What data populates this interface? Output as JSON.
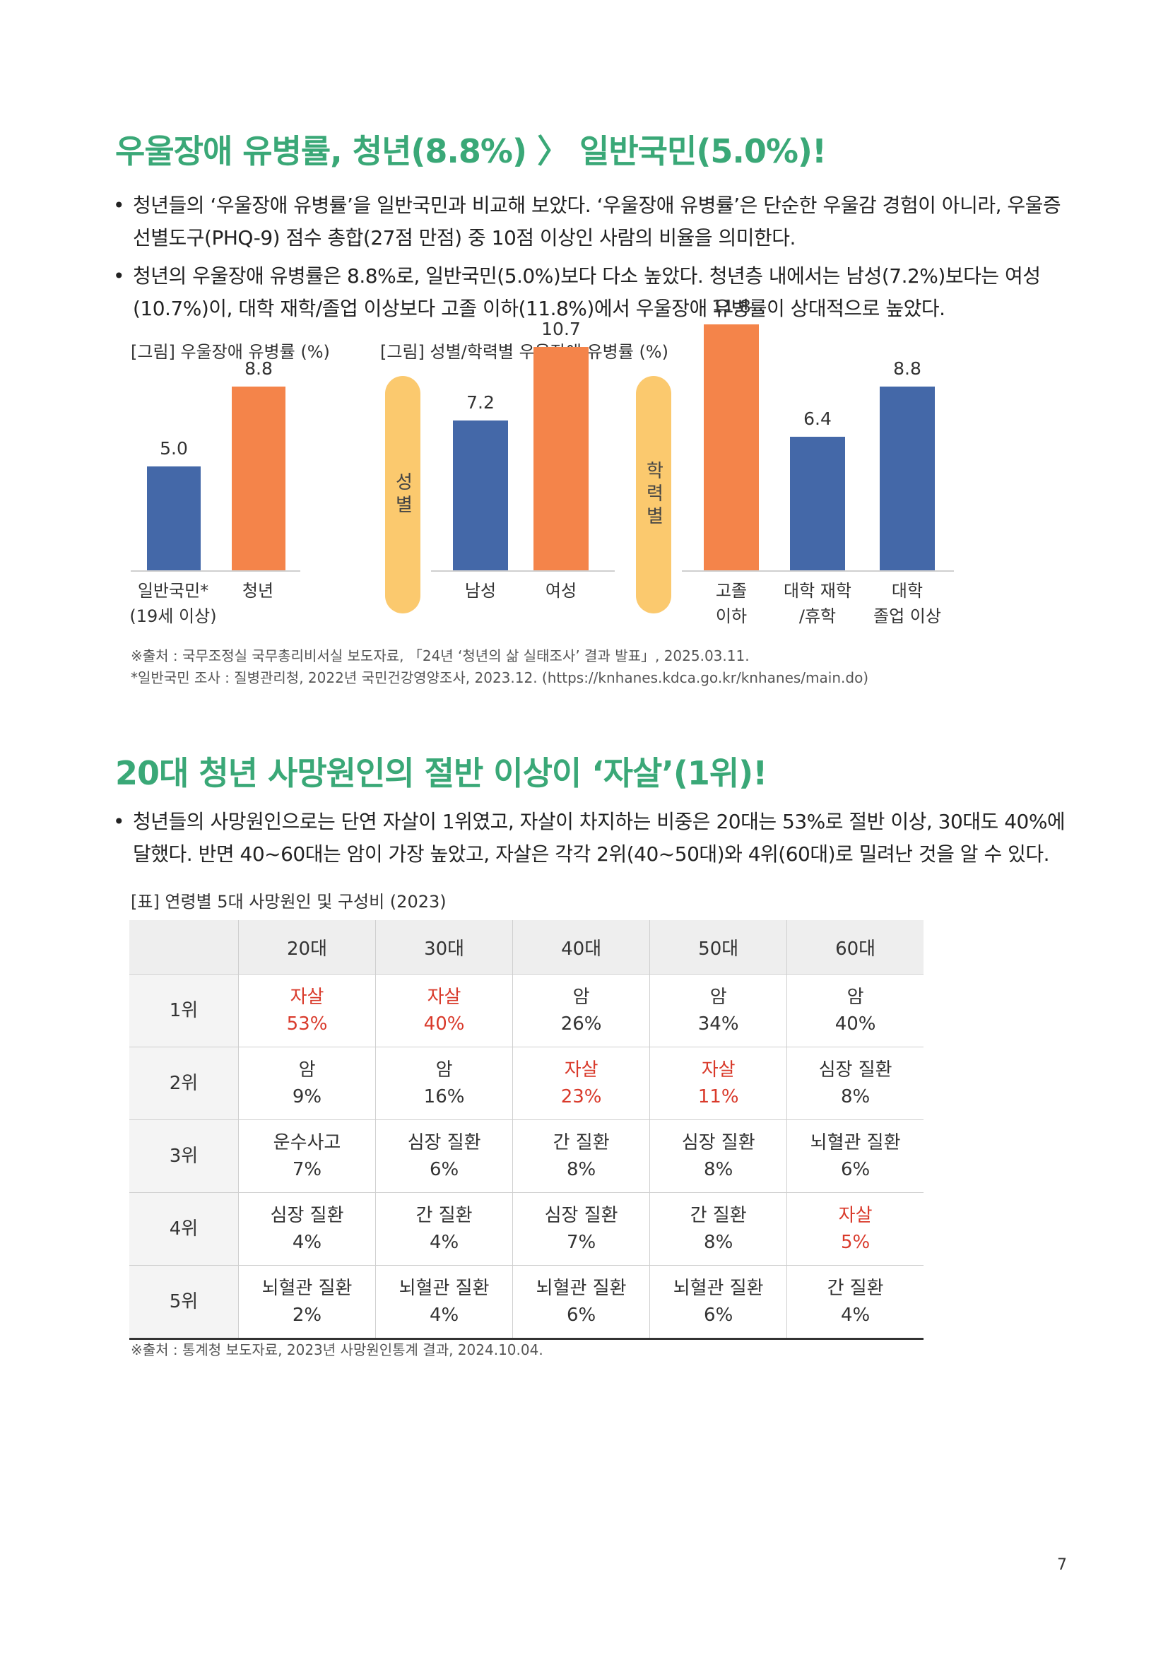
{
  "section1": {
    "heading": "우울장애 유병률, 청년(8.8%) 〉 일반국민(5.0%)!",
    "bullets": [
      "청년들의 ‘우울장애 유병률’을 일반국민과 비교해 보았다. ‘우울장애 유병률’은 단순한 우울감 경험이 아니라, 우울증 선별도구(PHQ-9) 점수 총합(27점 만점) 중 10점 이상인 사람의 비율을 의미한다.",
      "청년의 우울장애 유병률은 8.8%로, 일반국민(5.0%)보다 다소 높았다. 청년층 내에서는 남성(7.2%)보다는 여성(10.7%)이, 대학 재학/졸업 이상보다 고졸 이하(11.8%)에서 우울장애 유병률이 상대적으로 높았다."
    ],
    "fig1_caption": "[그림] 우울장애 유병률 (%)",
    "fig2_caption": "[그림] 성별/학력별 우울장애 유병률 (%)",
    "group_gender": "성별",
    "group_edu": "학력별",
    "source1": "※출처 : 국무조정실 국무총리비서실 보도자료, 「24년 ‘청년의 삶 실태조사’ 결과 발표」, 2025.03.11.",
    "source2": "*일반국민 조사 : 질병관리청, 2022년 국민건강영양조사, 2023.12. (https://knhanes.kdca.go.kr/knhanes/main.do)"
  },
  "chart_data": [
    {
      "type": "bar",
      "title": "[그림] 우울장애 유병률 (%)",
      "categories": [
        "일반국민*\n(19세 이상)",
        "청년"
      ],
      "values": [
        5.0,
        8.8
      ],
      "colors": [
        "#4468a8",
        "#f4844a"
      ],
      "ylim": [
        0,
        12
      ]
    },
    {
      "type": "bar",
      "title": "[그림] 성별/학력별 우울장애 유병률 (%)",
      "groups": [
        {
          "name": "성별",
          "categories": [
            "남성",
            "여성"
          ],
          "values": [
            7.2,
            10.7
          ],
          "colors": [
            "#4468a8",
            "#f4844a"
          ]
        },
        {
          "name": "학력별",
          "categories": [
            "고졸\n이하",
            "대학 재학\n/휴학",
            "대학\n졸업 이상"
          ],
          "values": [
            11.8,
            6.4,
            8.8
          ],
          "colors": [
            "#f4844a",
            "#4468a8",
            "#4468a8"
          ]
        }
      ],
      "ylim": [
        0,
        12
      ]
    }
  ],
  "section2": {
    "heading": "20대 청년 사망원인의 절반 이상이 ‘자살’(1위)!",
    "bullets": [
      "청년들의 사망원인으로는 단연 자살이 1위였고, 자살이 차지하는 비중은 20대는 53%로 절반 이상, 30대도 40%에 달했다. 반면 40~60대는 암이 가장 높았고, 자살은 각각 2위(40~50대)와 4위(60대)로 밀려난 것을 알 수 있다."
    ],
    "table_caption": "[표] 연령별 5대 사망원인 및 구성비 (2023)",
    "table": {
      "headers": [
        "",
        "20대",
        "30대",
        "40대",
        "50대",
        "60대"
      ],
      "rows": [
        {
          "rank": "1위",
          "cells": [
            {
              "name": "자살",
              "pct": "53%",
              "hl": true
            },
            {
              "name": "자살",
              "pct": "40%",
              "hl": true
            },
            {
              "name": "암",
              "pct": "26%",
              "hl": false
            },
            {
              "name": "암",
              "pct": "34%",
              "hl": false
            },
            {
              "name": "암",
              "pct": "40%",
              "hl": false
            }
          ]
        },
        {
          "rank": "2위",
          "cells": [
            {
              "name": "암",
              "pct": "9%",
              "hl": false
            },
            {
              "name": "암",
              "pct": "16%",
              "hl": false
            },
            {
              "name": "자살",
              "pct": "23%",
              "hl": true
            },
            {
              "name": "자살",
              "pct": "11%",
              "hl": true
            },
            {
              "name": "심장 질환",
              "pct": "8%",
              "hl": false
            }
          ]
        },
        {
          "rank": "3위",
          "cells": [
            {
              "name": "운수사고",
              "pct": "7%",
              "hl": false
            },
            {
              "name": "심장 질환",
              "pct": "6%",
              "hl": false
            },
            {
              "name": "간 질환",
              "pct": "8%",
              "hl": false
            },
            {
              "name": "심장 질환",
              "pct": "8%",
              "hl": false
            },
            {
              "name": "뇌혈관 질환",
              "pct": "6%",
              "hl": false
            }
          ]
        },
        {
          "rank": "4위",
          "cells": [
            {
              "name": "심장 질환",
              "pct": "4%",
              "hl": false
            },
            {
              "name": "간 질환",
              "pct": "4%",
              "hl": false
            },
            {
              "name": "심장 질환",
              "pct": "7%",
              "hl": false
            },
            {
              "name": "간 질환",
              "pct": "8%",
              "hl": false
            },
            {
              "name": "자살",
              "pct": "5%",
              "hl": true
            }
          ]
        },
        {
          "rank": "5위",
          "cells": [
            {
              "name": "뇌혈관 질환",
              "pct": "2%",
              "hl": false
            },
            {
              "name": "뇌혈관 질환",
              "pct": "4%",
              "hl": false
            },
            {
              "name": "뇌혈관 질환",
              "pct": "6%",
              "hl": false
            },
            {
              "name": "뇌혈관 질환",
              "pct": "6%",
              "hl": false
            },
            {
              "name": "간 질환",
              "pct": "4%",
              "hl": false
            }
          ]
        }
      ]
    },
    "source": "※출처 : 통계청 보도자료, 2023년 사망원인통계 결과, 2024.10.04."
  },
  "page_number": "7"
}
